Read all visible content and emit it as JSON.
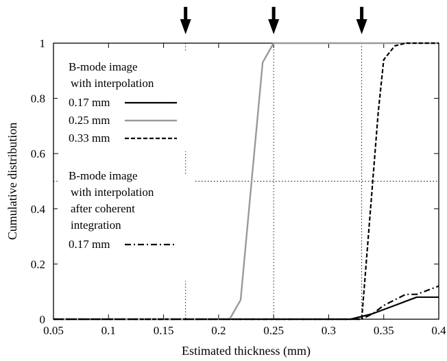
{
  "chart_data": {
    "type": "line",
    "xlabel": "Estimated thickness (mm)",
    "ylabel": "Cumulative distribution",
    "xlim": [
      0.05,
      0.4
    ],
    "ylim": [
      0,
      1
    ],
    "x_ticks": [
      "0.05",
      "0.1",
      "0.15",
      "0.2",
      "0.25",
      "0.3",
      "0.35",
      "0.4"
    ],
    "y_ticks": [
      "0",
      "0.2",
      "0.4",
      "0.6",
      "0.8",
      "1"
    ],
    "grid": "dotted reference lines at x = 0.17, 0.25, 0.33 and y = 0.5",
    "reference_lines": {
      "x": [
        0.17,
        0.25,
        0.33
      ],
      "y": [
        0.5
      ]
    },
    "arrows_at_x": [
      0.17,
      0.25,
      0.33
    ],
    "legend_groups": [
      {
        "title_lines": [
          "B-mode image",
          "with interpolation"
        ]
      },
      {
        "title_lines": [
          "B-mode image",
          "with interpolation",
          "after coherent",
          "integration"
        ]
      }
    ],
    "series": [
      {
        "name": "0.17 mm",
        "group": 0,
        "color": "#000000",
        "style": "solid",
        "x": [
          0.05,
          0.32,
          0.33,
          0.34,
          0.35,
          0.36,
          0.37,
          0.38,
          0.39,
          0.4
        ],
        "y": [
          0,
          0,
          0.01,
          0.02,
          0.035,
          0.05,
          0.065,
          0.08,
          0.08,
          0.08
        ]
      },
      {
        "name": "0.25 mm",
        "group": 0,
        "color": "#999999",
        "style": "solid",
        "x": [
          0.05,
          0.21,
          0.22,
          0.23,
          0.24,
          0.25,
          0.26,
          0.4
        ],
        "y": [
          0,
          0,
          0.07,
          0.5,
          0.93,
          1,
          1,
          1
        ]
      },
      {
        "name": "0.33 mm",
        "group": 0,
        "color": "#000000",
        "style": "dashed",
        "x": [
          0.05,
          0.33,
          0.34,
          0.345,
          0.35,
          0.36,
          0.37,
          0.4
        ],
        "y": [
          0,
          0,
          0.5,
          0.75,
          0.94,
          0.99,
          1,
          1
        ]
      },
      {
        "name": "0.17 mm",
        "group": 1,
        "color": "#000000",
        "style": "dashdot",
        "x": [
          0.05,
          0.33,
          0.34,
          0.35,
          0.36,
          0.37,
          0.38,
          0.39,
          0.4
        ],
        "y": [
          0,
          0,
          0.02,
          0.05,
          0.07,
          0.09,
          0.09,
          0.105,
          0.12
        ]
      }
    ]
  }
}
